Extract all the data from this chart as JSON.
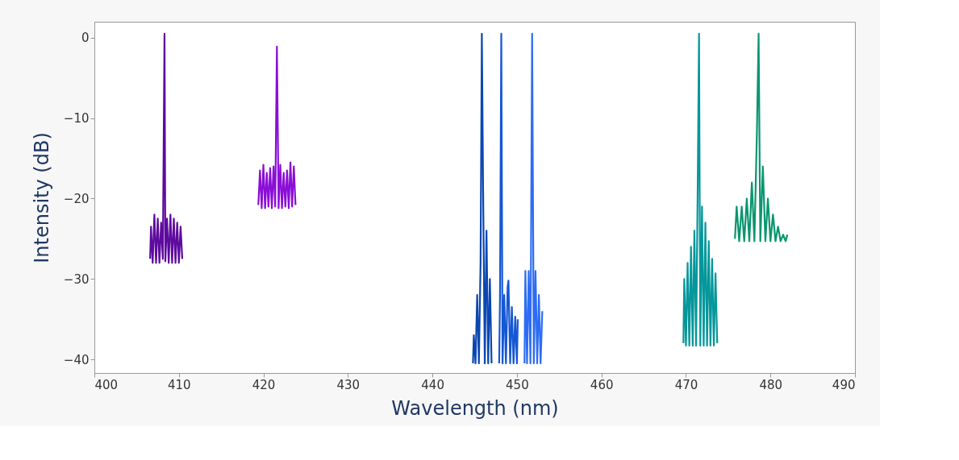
{
  "chart_data": {
    "type": "line",
    "xlabel": "Wavelength (nm)",
    "ylabel": "Intensity (dB)",
    "xlim": [
      400,
      490
    ],
    "xticks": [
      400,
      410,
      420,
      430,
      440,
      450,
      460,
      470,
      480,
      490
    ],
    "ylim": [
      -41.7,
      2
    ],
    "yticks": [
      0,
      -10,
      -20,
      -30,
      -40
    ],
    "grid": false,
    "marker": "none",
    "line_style": "solid",
    "series": [
      {
        "color": "#5e0a9e",
        "x": [
          406.6,
          406.7,
          406.9,
          407.1,
          407.3,
          407.5,
          407.7,
          407.9,
          408.1,
          408.3,
          408.4,
          408.6,
          408.8,
          409.0,
          409.2,
          409.4,
          409.6,
          409.8,
          410.0,
          410.2,
          410.4
        ],
        "values": [
          -27.5,
          -23.5,
          -28.0,
          -22.0,
          -28.0,
          -22.5,
          -28.0,
          -23.0,
          -27.5,
          0.5,
          -27.8,
          -22.5,
          -28.0,
          -22.0,
          -28.0,
          -22.5,
          -28.0,
          -23.0,
          -28.0,
          -23.5,
          -27.5
        ]
      },
      {
        "color": "#8b0fd6",
        "x": [
          419.4,
          419.6,
          419.8,
          420.0,
          420.2,
          420.4,
          420.6,
          420.8,
          421.0,
          421.2,
          421.4,
          421.6,
          421.8,
          422.0,
          422.2,
          422.4,
          422.6,
          422.8,
          423.0,
          423.2,
          423.4,
          423.6,
          423.8
        ],
        "values": [
          -20.8,
          -16.5,
          -21.2,
          -15.8,
          -21.2,
          -16.8,
          -21.0,
          -16.2,
          -21.2,
          -16.0,
          -21.0,
          -1.1,
          -21.2,
          -15.8,
          -21.2,
          -16.8,
          -21.0,
          -16.5,
          -21.2,
          -15.5,
          -21.0,
          -16.0,
          -20.8
        ]
      },
      {
        "color": "#0b47b0",
        "x": [
          444.8,
          444.9,
          445.1,
          445.3,
          445.5,
          445.7,
          445.85,
          446.0,
          446.2,
          446.4,
          446.6,
          446.8,
          447.0
        ],
        "values": [
          -40.5,
          -37,
          -40.5,
          -32,
          -40.5,
          -28,
          0.5,
          -19,
          -40.5,
          -24,
          -40.5,
          -30,
          -40.5
        ]
      },
      {
        "color": "#1557d4",
        "x": [
          447.9,
          448.0,
          448.15,
          448.3,
          448.5,
          448.7,
          448.9,
          449.0,
          449.2,
          449.4,
          449.6,
          449.8,
          450.0,
          450.1
        ],
        "values": [
          -40.5,
          -32,
          0.5,
          -40.5,
          -32,
          -40.5,
          -31,
          -30.2,
          -40.5,
          -33.5,
          -40.5,
          -34.7,
          -40.5,
          -35
        ]
      },
      {
        "color": "#2d6cf5",
        "x": [
          450.9,
          451.0,
          451.2,
          451.4,
          451.6,
          451.8,
          452.0,
          452.2,
          452.4,
          452.6,
          452.8,
          453.0
        ],
        "values": [
          -40.5,
          -29,
          -40.5,
          -29,
          -40.5,
          0.5,
          -40.5,
          -29,
          -40.5,
          -32,
          -40.5,
          -34
        ]
      },
      {
        "color": "#05979c",
        "x": [
          469.7,
          469.8,
          470.0,
          470.2,
          470.4,
          470.6,
          470.8,
          471.0,
          471.2,
          471.4,
          471.55,
          471.7,
          471.9,
          472.1,
          472.3,
          472.5,
          472.7,
          472.9,
          473.1,
          473.3,
          473.5,
          473.7
        ],
        "values": [
          -38,
          -30,
          -38.3,
          -28,
          -38.3,
          -26,
          -38.3,
          -24,
          -38.3,
          -18,
          0.5,
          -38.3,
          -21,
          -38.3,
          -23,
          -38.3,
          -25.3,
          -38.3,
          -27.5,
          -38.3,
          -29.3,
          -38
        ]
      },
      {
        "color": "#0b9670",
        "x": [
          475.8,
          476.0,
          476.3,
          476.6,
          476.9,
          477.2,
          477.5,
          477.8,
          478.1,
          478.4,
          478.6,
          478.8,
          479.1,
          479.4,
          479.7,
          480.0,
          480.3,
          480.6,
          480.9,
          481.2,
          481.5,
          481.8,
          482.0
        ],
        "values": [
          -25,
          -21,
          -25.3,
          -21,
          -25.3,
          -20,
          -25.3,
          -18,
          -25.3,
          -11.7,
          0.5,
          -25.3,
          -16,
          -25.3,
          -20,
          -25.3,
          -22,
          -25.3,
          -23.5,
          -25.3,
          -24.5,
          -25.3,
          -24.5
        ]
      }
    ]
  }
}
